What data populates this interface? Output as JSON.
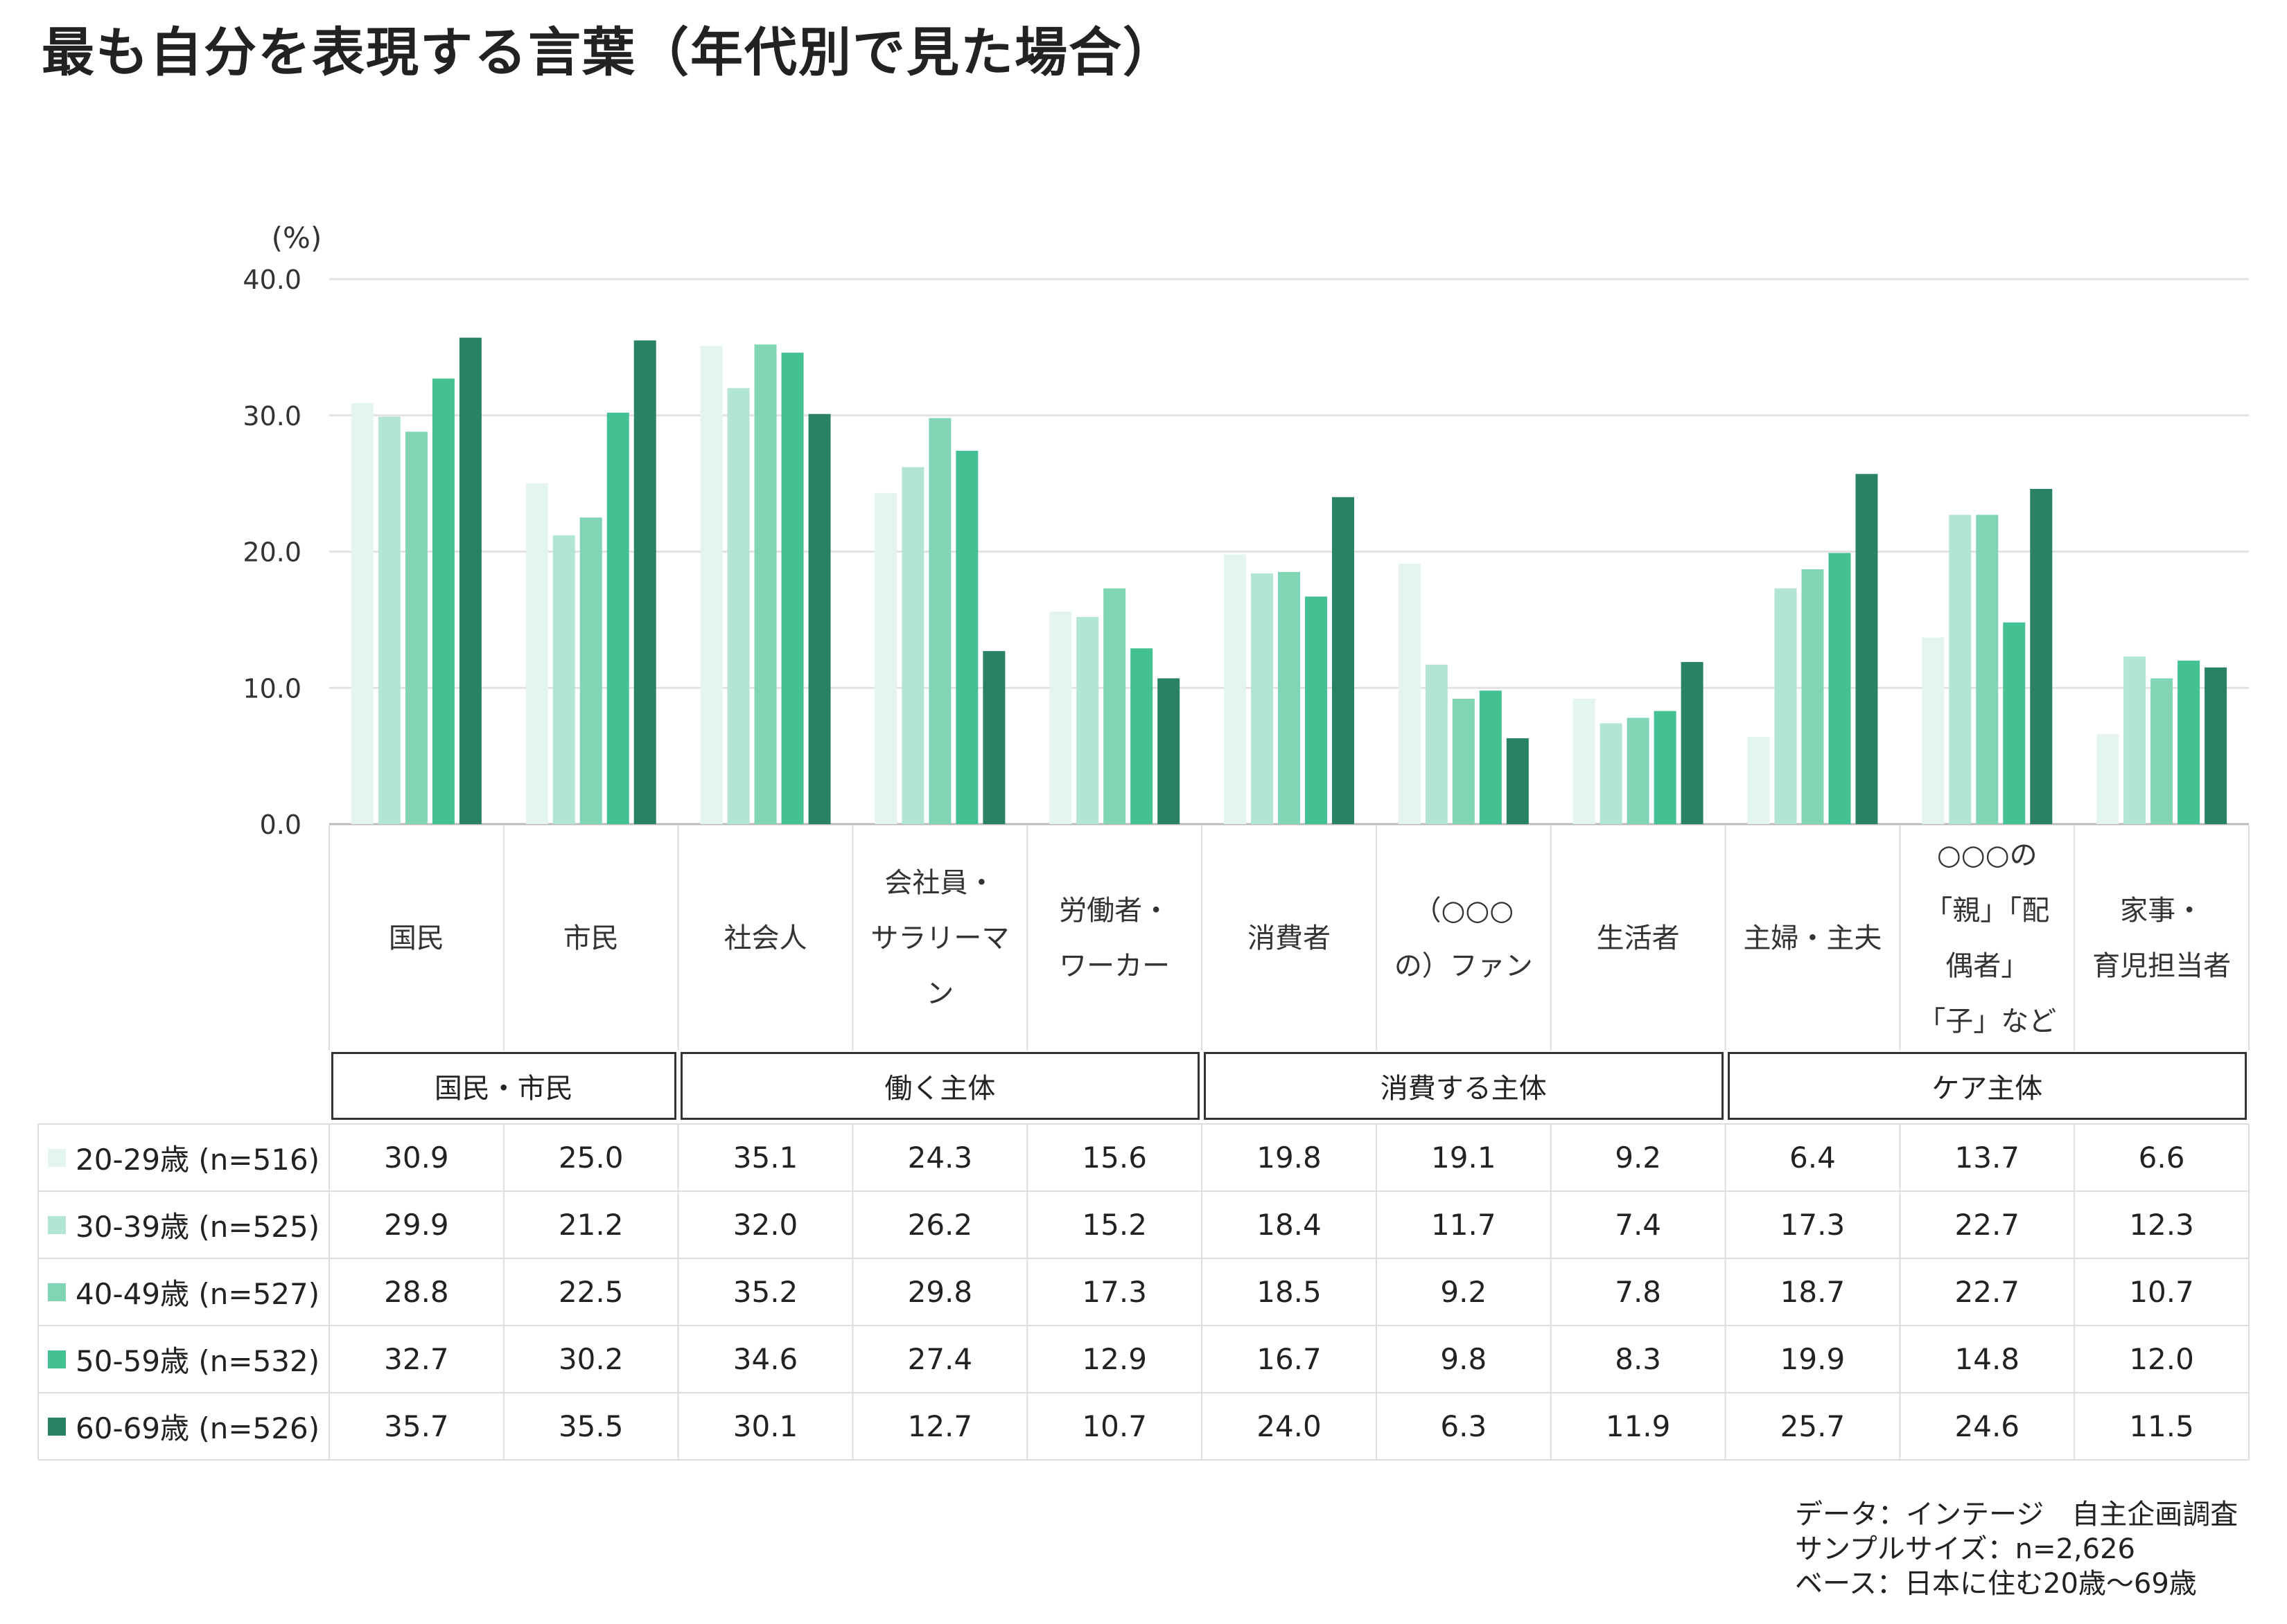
{
  "title": "最も自分を表現する言葉（年代別で見た場合）",
  "chart_data": {
    "type": "bar",
    "unit_label": "(%)",
    "ylim": [
      0,
      40
    ],
    "yticks": [
      "40.0",
      "30.0",
      "20.0",
      "10.0",
      "0.0"
    ],
    "grid": true,
    "categories": [
      "国民",
      "市民",
      "社会人",
      "会社員・\nサラリーマ\nン",
      "労働者・\nワーカー",
      "消費者",
      "（○○○\nの）ファン",
      "生活者",
      "主婦・主夫",
      "○○○の\n「親」「配\n偶者」\n「子」など",
      "家事・\n育児担当者"
    ],
    "groups": [
      {
        "label": "国民・市民",
        "span": 2
      },
      {
        "label": "働く主体",
        "span": 3
      },
      {
        "label": "消費する主体",
        "span": 3
      },
      {
        "label": "ケア主体",
        "span": 3
      }
    ],
    "series": [
      {
        "name": "20-29歳 (n=516)",
        "color": "#e3f5ee",
        "values": [
          30.9,
          25.0,
          35.1,
          24.3,
          15.6,
          19.8,
          19.1,
          9.2,
          6.4,
          13.7,
          6.6
        ]
      },
      {
        "name": "30-39歳 (n=525)",
        "color": "#b3e5d5",
        "values": [
          29.9,
          21.2,
          32.0,
          26.2,
          15.2,
          18.4,
          11.7,
          7.4,
          17.3,
          22.7,
          12.3
        ]
      },
      {
        "name": "40-49歳 (n=527)",
        "color": "#80d5b5",
        "values": [
          28.8,
          22.5,
          35.2,
          29.8,
          17.3,
          18.5,
          9.2,
          7.8,
          18.7,
          22.7,
          10.7
        ]
      },
      {
        "name": "50-59歳 (n=532)",
        "color": "#43c193",
        "values": [
          32.7,
          30.2,
          34.6,
          27.4,
          12.9,
          16.7,
          9.8,
          8.3,
          19.9,
          14.8,
          12.0
        ]
      },
      {
        "name": "60-69歳 (n=526)",
        "color": "#2a8266",
        "values": [
          35.7,
          35.5,
          30.1,
          12.7,
          10.7,
          24.0,
          6.3,
          11.9,
          25.7,
          24.6,
          11.5
        ]
      }
    ]
  },
  "source": {
    "line1": "データ：インテージ　自主企画調査",
    "line2": "サンプルサイズ：n=2,626",
    "line3": "ベース：日本に住む20歳～69歳"
  }
}
